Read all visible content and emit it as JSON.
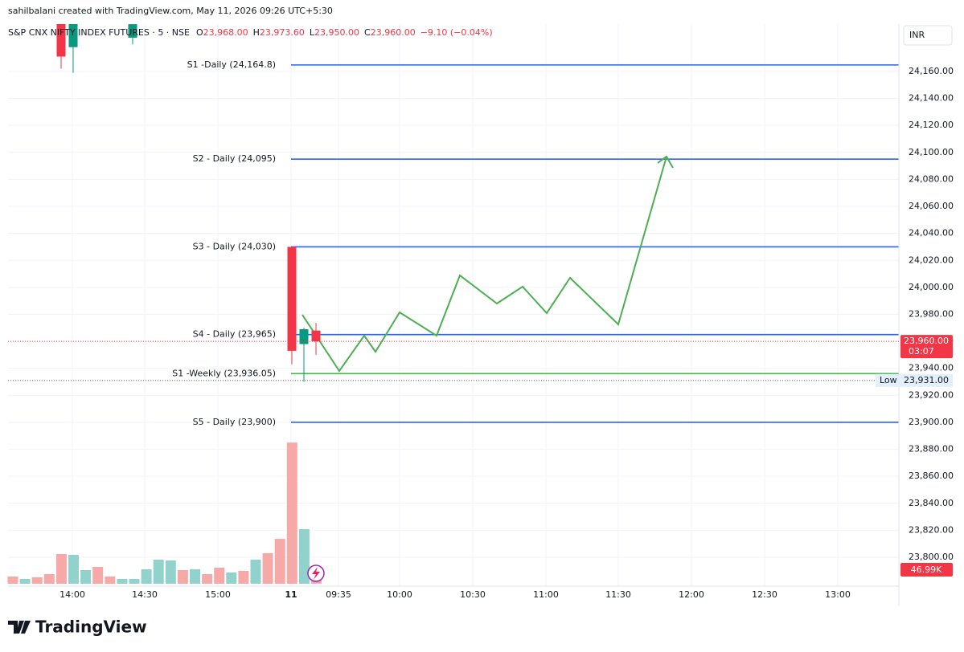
{
  "header": "sahilbalani created with TradingView.com, May 11, 2026 09:26 UTC+5:30",
  "chart_data": {
    "type": "candlestick",
    "symbol": "S&P CNX NIFTY INDEX FUTURES · 5 · NSE",
    "ohlc": [
      {
        "key": "O",
        "value": "23,968.00"
      },
      {
        "key": "H",
        "value": "23,973.60"
      },
      {
        "key": "L",
        "value": "23,950.00"
      },
      {
        "key": "C",
        "value": "23,960.00"
      }
    ],
    "change": "−9.10 (−0.04%)",
    "currency": "INR",
    "ylim": [
      23778.6,
      24180.2
    ],
    "yticks": [
      {
        "value": 23800,
        "label": "23,800.00"
      },
      {
        "value": 23820,
        "label": "23,820.00"
      },
      {
        "value": 23840,
        "label": "23,840.00"
      },
      {
        "value": 23860,
        "label": "23,860.00"
      },
      {
        "value": 23880,
        "label": "23,880.00"
      },
      {
        "value": 23900,
        "label": "23,900.00"
      },
      {
        "value": 23920,
        "label": "23,920.00"
      },
      {
        "value": 23940,
        "label": "23,940.00"
      },
      {
        "value": 23960,
        "label": "23,960.00"
      },
      {
        "value": 23980,
        "label": "23,980.00"
      },
      {
        "value": 24000,
        "label": "24,000.00"
      },
      {
        "value": 24020,
        "label": "24,020.00"
      },
      {
        "value": 24040,
        "label": "24,040.00"
      },
      {
        "value": 24060,
        "label": "24,060.00"
      },
      {
        "value": 24080,
        "label": "24,080.00"
      },
      {
        "value": 24100,
        "label": "24,100.00"
      },
      {
        "value": 24120,
        "label": "24,120.00"
      },
      {
        "value": 24140,
        "label": "24,140.00"
      },
      {
        "value": 24160,
        "label": "24,160.00"
      }
    ],
    "x_labels": [
      "14:00",
      "14:30",
      "15:00",
      "11",
      "09:35",
      "10:00",
      "10:30",
      "11:00",
      "11:30",
      "12:00",
      "12:30",
      "13:00"
    ],
    "grid": true,
    "candles": {
      "open": [
        24200,
        24178,
        24185,
        24030,
        23958,
        23968
      ],
      "high": [
        24210,
        24210,
        24200,
        24030,
        23970,
        23973.6
      ],
      "low": [
        24162,
        24159,
        24180,
        23943,
        23930,
        23950
      ],
      "close": [
        24171,
        24200,
        24195,
        23953,
        23969,
        23960
      ],
      "up_color": "#089981",
      "down_color": "#f23645"
    },
    "volume": {
      "values": [
        23500,
        15700,
        20900,
        31300,
        96600,
        94000,
        44400,
        54800,
        23500,
        15700,
        15700,
        47000,
        78300,
        75700,
        44400,
        47000,
        31300,
        52200,
        36500,
        41800,
        78300,
        99200,
        146000,
        459000,
        177500,
        46990
      ],
      "value_labels": [
        null,
        null,
        null,
        null,
        null,
        null,
        null,
        null,
        null,
        null,
        null,
        null,
        null,
        null,
        null,
        null,
        null,
        null,
        null,
        null,
        null,
        null,
        null,
        null,
        null,
        "46.99K"
      ],
      "colors": [
        "#f7a9a7",
        "#92d2cc",
        "#f7a9a7",
        "#f7a9a7",
        "#f7a9a7",
        "#92d2cc",
        "#92d2cc",
        "#f7a9a7",
        "#f7a9a7",
        "#92d2cc",
        "#92d2cc",
        "#92d2cc",
        "#92d2cc",
        "#92d2cc",
        "#f7a9a7",
        "#92d2cc",
        "#f7a9a7",
        "#f7a9a7",
        "#92d2cc",
        "#f7a9a7",
        "#92d2cc",
        "#f7a9a7",
        "#f7a9a7",
        "#f7a9a7",
        "#92d2cc",
        "#f7a9a7"
      ]
    },
    "levels": [
      {
        "label": "S1 -Daily (24,164.8)",
        "value": 24164.8,
        "color": "#2962ff"
      },
      {
        "label": "S2 - Daily (24,095)",
        "value": 24095,
        "color": "#2962ff"
      },
      {
        "label": "S3 - Daily (24,030)",
        "value": 24030,
        "color": "#2962ff"
      },
      {
        "label": "S4 - Daily (23,965)",
        "value": 23965,
        "color": "#2962ff"
      },
      {
        "label": "S1 -Weekly (23,936.05)",
        "value": 23936.05,
        "color": "#4caf50"
      },
      {
        "label": "S5 - Daily (23,900)",
        "value": 23900,
        "color": "#2962ff"
      }
    ],
    "last_price": {
      "value": 23960,
      "label": "23,960.00"
    },
    "countdown": "03:07",
    "low": {
      "value": 23931,
      "label": "23,931.00",
      "text": "Low"
    }
  },
  "logo": "TradingView"
}
